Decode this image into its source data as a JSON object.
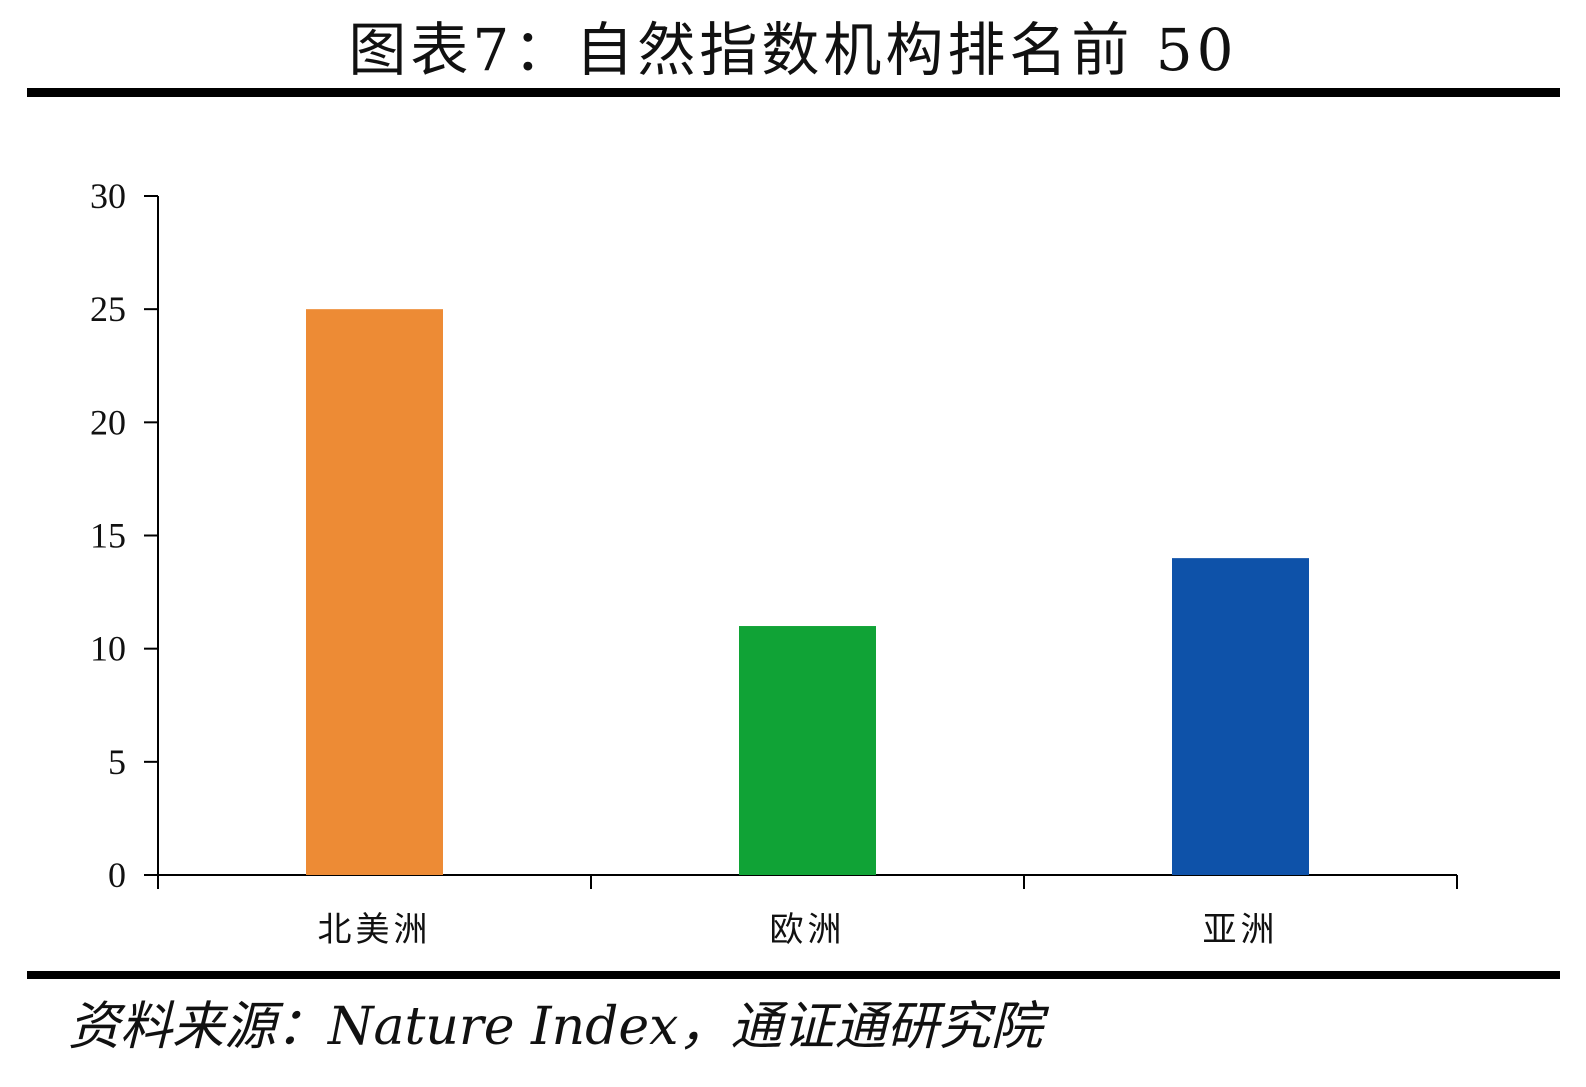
{
  "title": "图表7：自然指数机构排名前 50",
  "source": "资料来源：Nature Index，通证通研究院",
  "chart_data": {
    "type": "bar",
    "title": "图表7：自然指数机构排名前 50",
    "xlabel": "",
    "ylabel": "",
    "categories": [
      "北美洲",
      "欧洲",
      "亚洲"
    ],
    "values": [
      25,
      11,
      14
    ],
    "colors": [
      "#ED8B35",
      "#10A336",
      "#0E52A9"
    ],
    "ylim": [
      0,
      30
    ],
    "yticks": [
      0,
      5,
      10,
      15,
      20,
      25,
      30
    ],
    "grid": false,
    "legend": "none"
  }
}
